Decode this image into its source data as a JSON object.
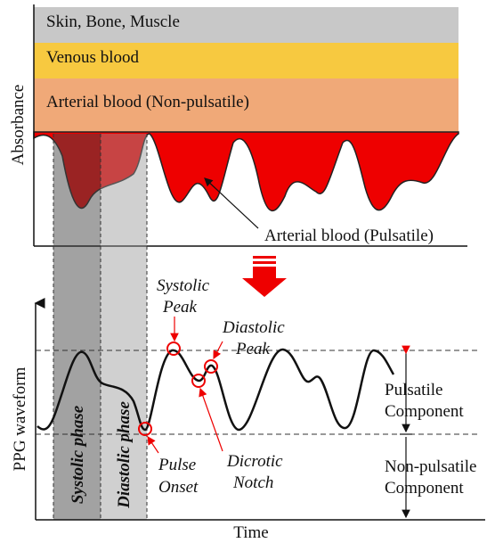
{
  "top_panel": {
    "y_axis_label": "Absorbance",
    "layers": [
      "Skin, Bone, Muscle",
      "Venous blood",
      "Arterial blood (Non-pulsatile)"
    ],
    "pulsatile_label": "Arterial blood (Pulsatile)"
  },
  "bottom_panel": {
    "y_axis_label": "PPG waveform",
    "x_axis_label": "Time",
    "phases": [
      "Systolic phase",
      "Diastolic phase"
    ],
    "points": {
      "systolic_peak": [
        "Systolic",
        "Peak"
      ],
      "diastolic_peak": [
        "Diastolic",
        "Peak"
      ],
      "dicrotic_notch": [
        "Dicrotic",
        "Notch"
      ],
      "pulse_onset": [
        "Pulse",
        "Onset"
      ]
    },
    "components": {
      "pulsatile": [
        "Pulsatile",
        "Component"
      ],
      "non_pulsatile": [
        "Non-pulsatile",
        "Component"
      ]
    }
  }
}
